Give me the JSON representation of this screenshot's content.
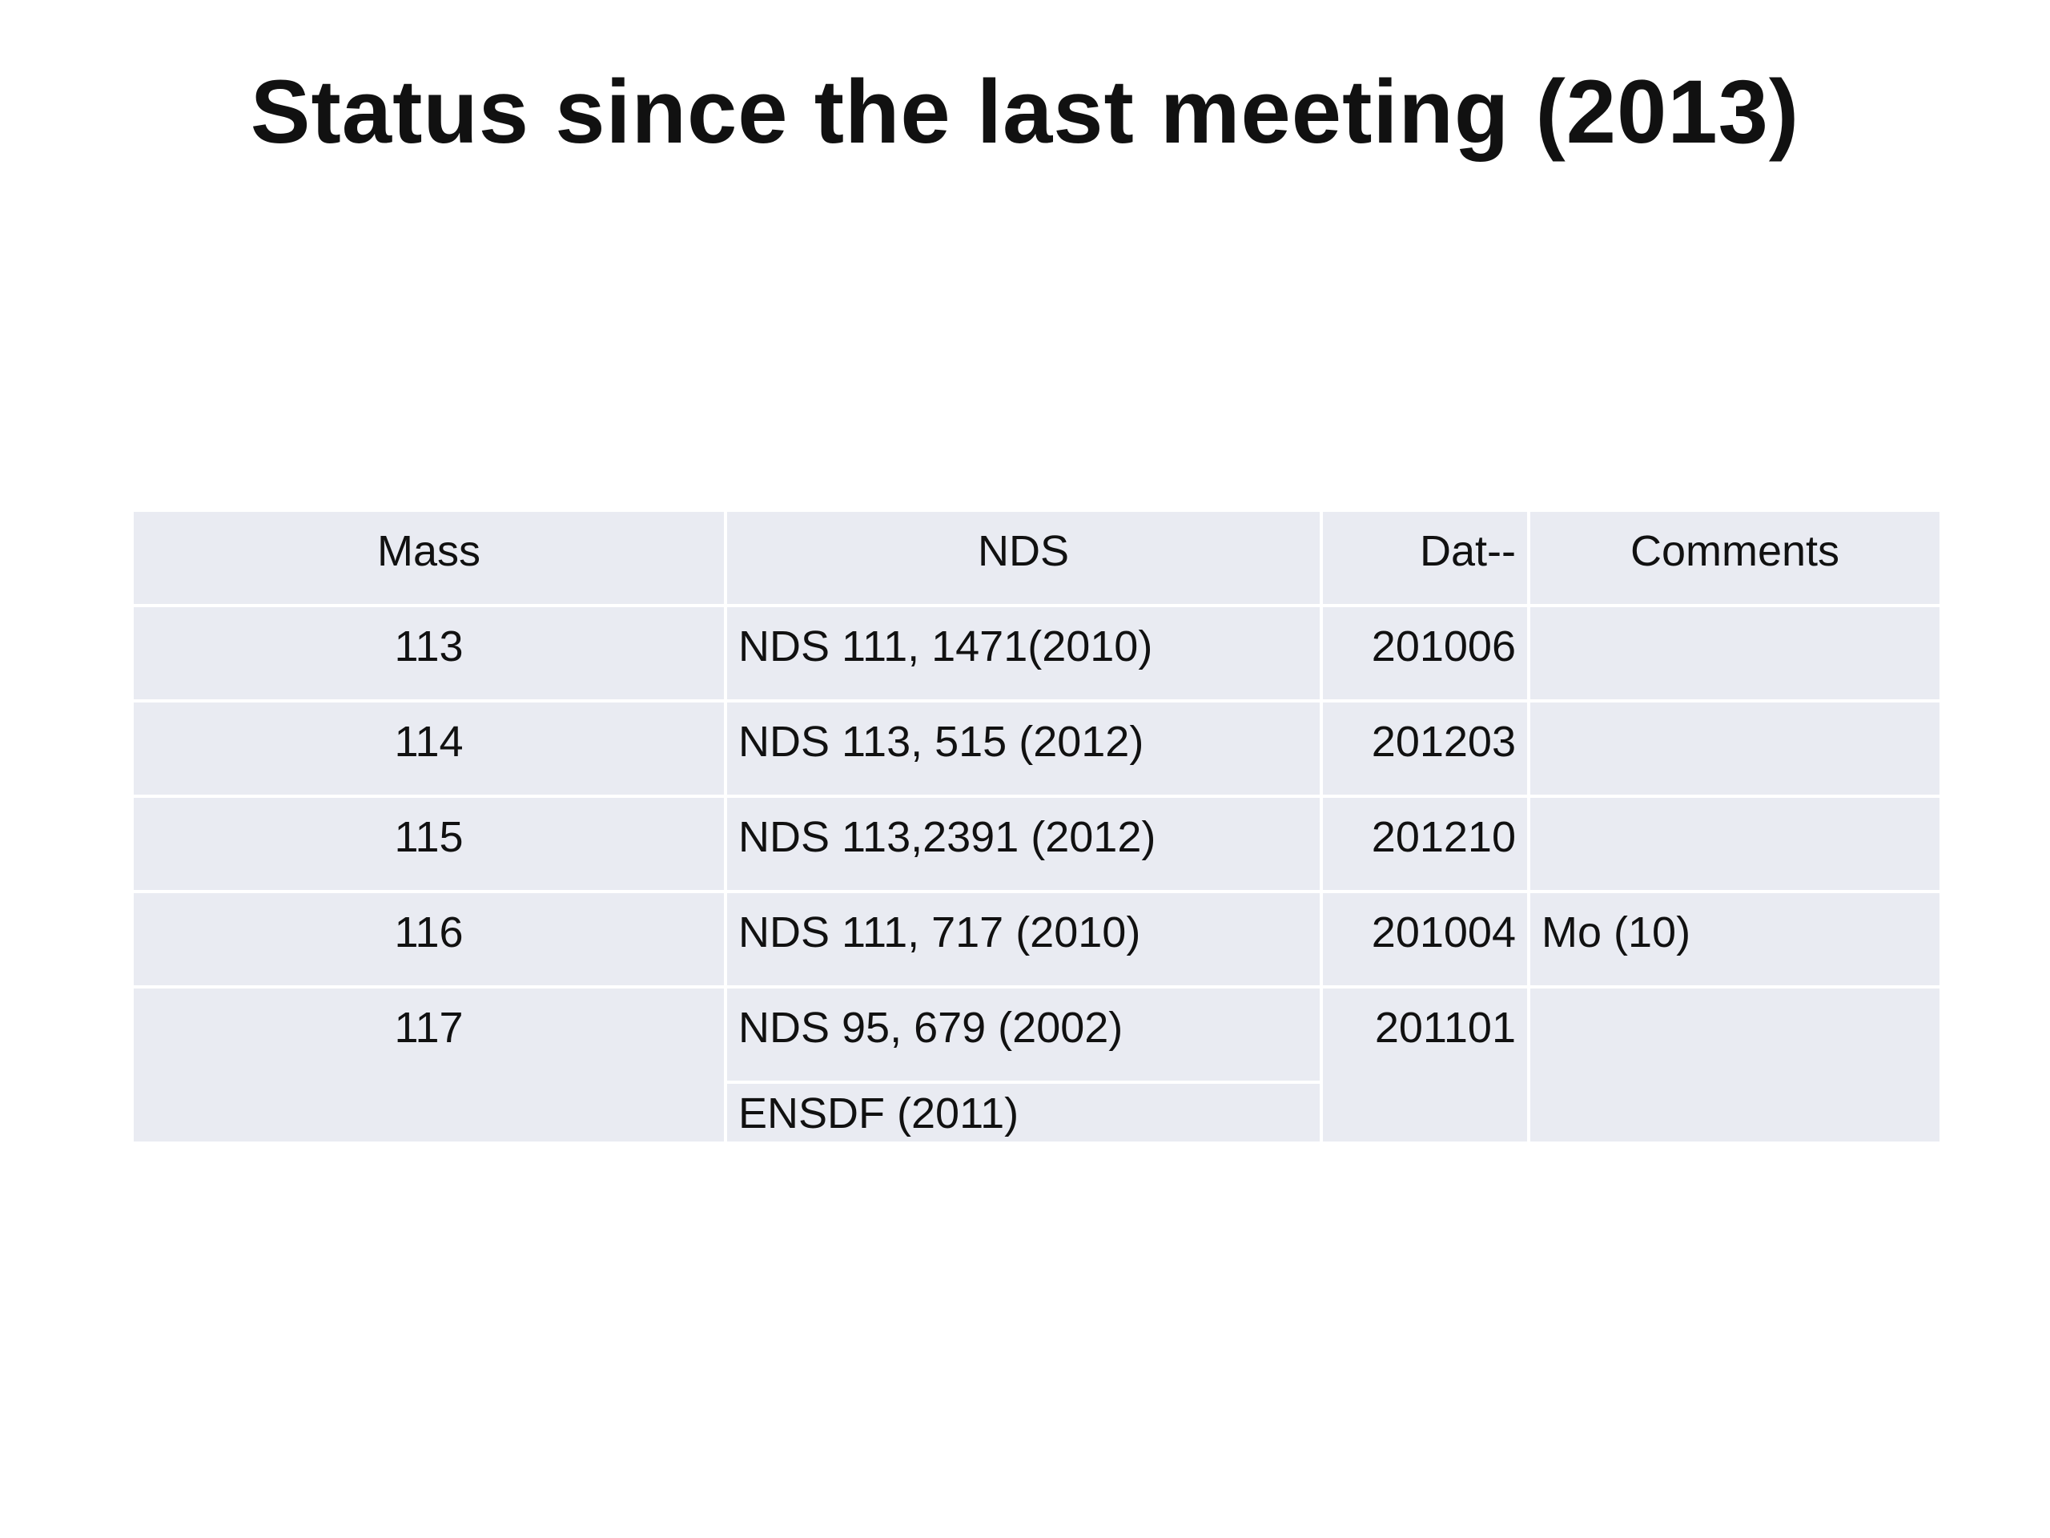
{
  "title": "Status since the last meeting (2013)",
  "table": {
    "header": [
      "Mass",
      "NDS",
      "Dat--",
      "Comments"
    ],
    "rows": [
      {
        "mass": "113",
        "nds": [
          "NDS 111, 1471(2010)"
        ],
        "date": "201006"
      },
      {
        "mass": "114",
        "nds": [
          "NDS 113, 515 (2012)"
        ],
        "date": "201203"
      },
      {
        "mass": "115",
        "nds": [
          "NDS 113,2391 (2012)"
        ],
        "date": "201210"
      },
      {
        "mass": "116",
        "nds": [
          "NDS 111, 717 (2010)"
        ],
        "date": "201004",
        "comments": "Mo (10)"
      },
      {
        "mass": "117",
        "nds": [
          "NDS 95, 679 (2002)",
          "ENSDF (2011)"
        ],
        "date": "201101"
      }
    ]
  }
}
